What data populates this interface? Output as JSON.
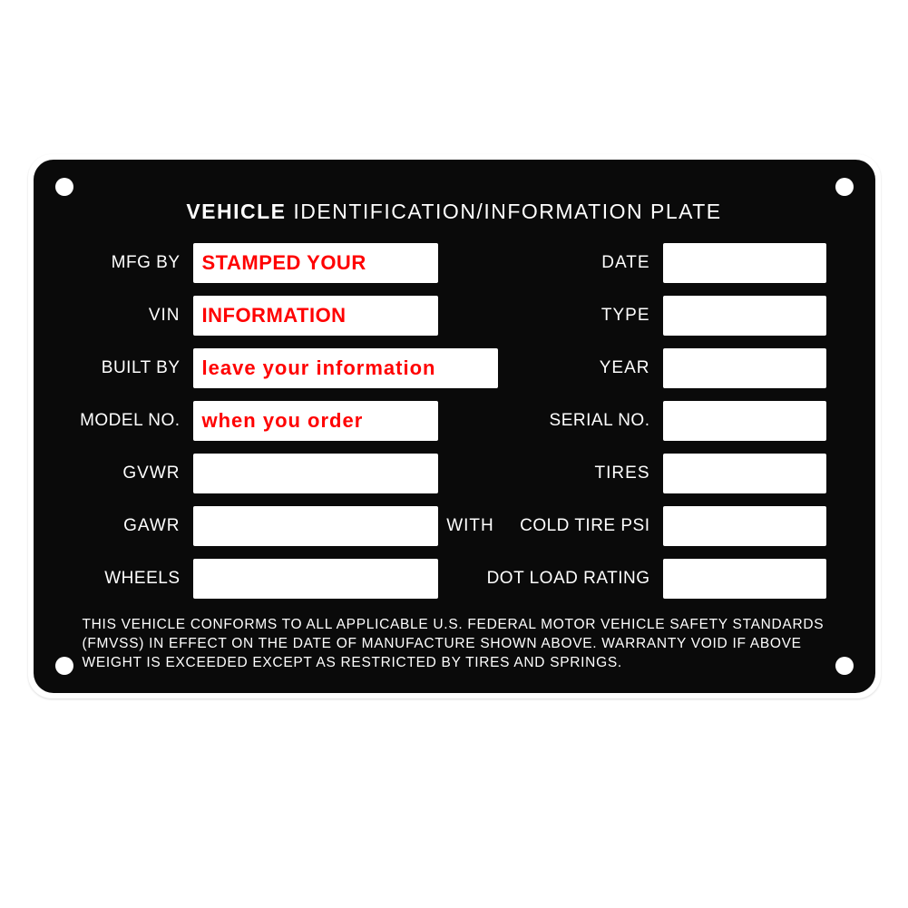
{
  "colors": {
    "plate_bg": "#0a0a0a",
    "text": "#ffffff",
    "box_bg": "#ffffff",
    "value_color": "#ff0000",
    "page_bg": "#ffffff"
  },
  "title_bold": "VEHICLE",
  "title_rest": " IDENTIFICATION/INFORMATION PLATE",
  "labels": {
    "mfg_by": "MFG BY",
    "date": "DATE",
    "vin": "VIN",
    "type": "TYPE",
    "built_by": "BUILT BY",
    "year": "YEAR",
    "model_no": "MODEL NO.",
    "serial_no": "SERIAL NO.",
    "gvwr": "GVWR",
    "tires": "TIRES",
    "gawr": "GAWR",
    "with": "WITH",
    "cold_tire_psi": "COLD TIRE PSI",
    "wheels": "WHEELS",
    "dot_load_rating": "DOT  LOAD RATING"
  },
  "values": {
    "mfg_by": "STAMPED YOUR",
    "vin": "INFORMATION",
    "built_by": "leave your information",
    "model_no": "when you order",
    "date": "",
    "type": "",
    "year": "",
    "serial_no": "",
    "gvwr": "",
    "tires": "",
    "gawr": "",
    "cold_tire_psi": "",
    "wheels": "",
    "dot_load_rating": ""
  },
  "footer": "THIS VEHICLE CONFORMS TO ALL  APPLICABLE  U.S.  FEDERAL MOTOR VEHICLE SAFETY STANDARDS (FMVSS) IN EFFECT ON THE DATE OF MANUFACTURE SHOWN ABOVE. WARRANTY VOID IF ABOVE WEIGHT IS EXCEEDED EXCEPT AS RESTRICTED BY TIRES AND SPRINGS."
}
